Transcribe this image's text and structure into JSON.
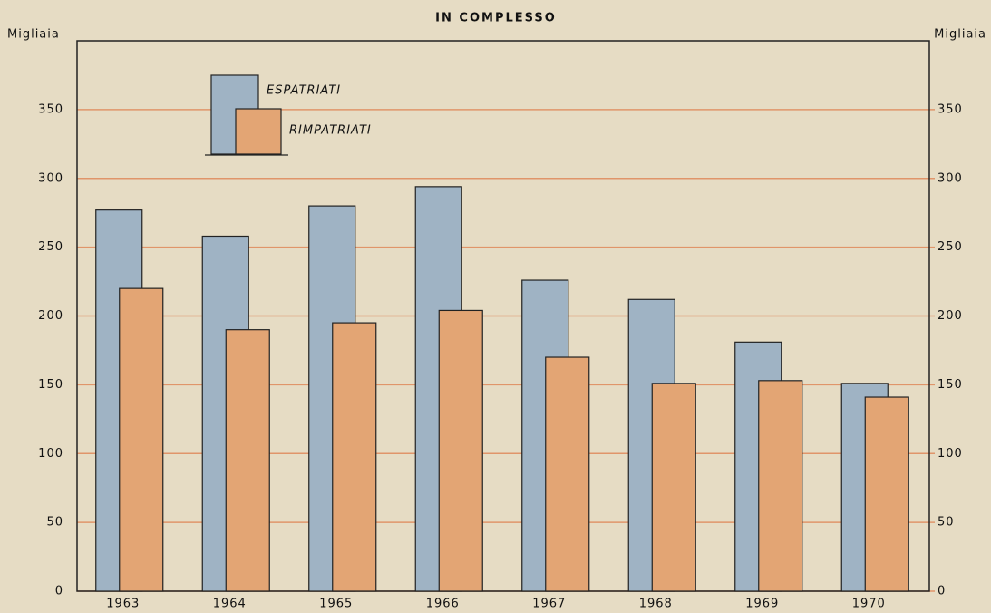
{
  "chart_data": {
    "type": "bar",
    "title": "IN COMPLESSO",
    "y_label": "Migliaia",
    "y2_label": "Migliaia",
    "categories": [
      "1963",
      "1964",
      "1965",
      "1966",
      "1967",
      "1968",
      "1969",
      "1970"
    ],
    "series": [
      {
        "name": "ESPATRIATI",
        "color": "#9fb3c4",
        "values": [
          277,
          258,
          280,
          294,
          226,
          212,
          181,
          151
        ]
      },
      {
        "name": "RIMPATRIATI",
        "color": "#e3a574",
        "values": [
          220,
          190,
          195,
          204,
          170,
          151,
          153,
          141
        ]
      }
    ],
    "ylim": [
      0,
      400
    ],
    "yticks": [
      0,
      50,
      100,
      150,
      200,
      250,
      300,
      350
    ],
    "y2lim": [
      0,
      400
    ],
    "y2ticks": [
      0,
      50,
      100,
      150,
      200,
      250,
      300,
      350
    ],
    "grid": true,
    "grid_color": "#e0956a"
  }
}
